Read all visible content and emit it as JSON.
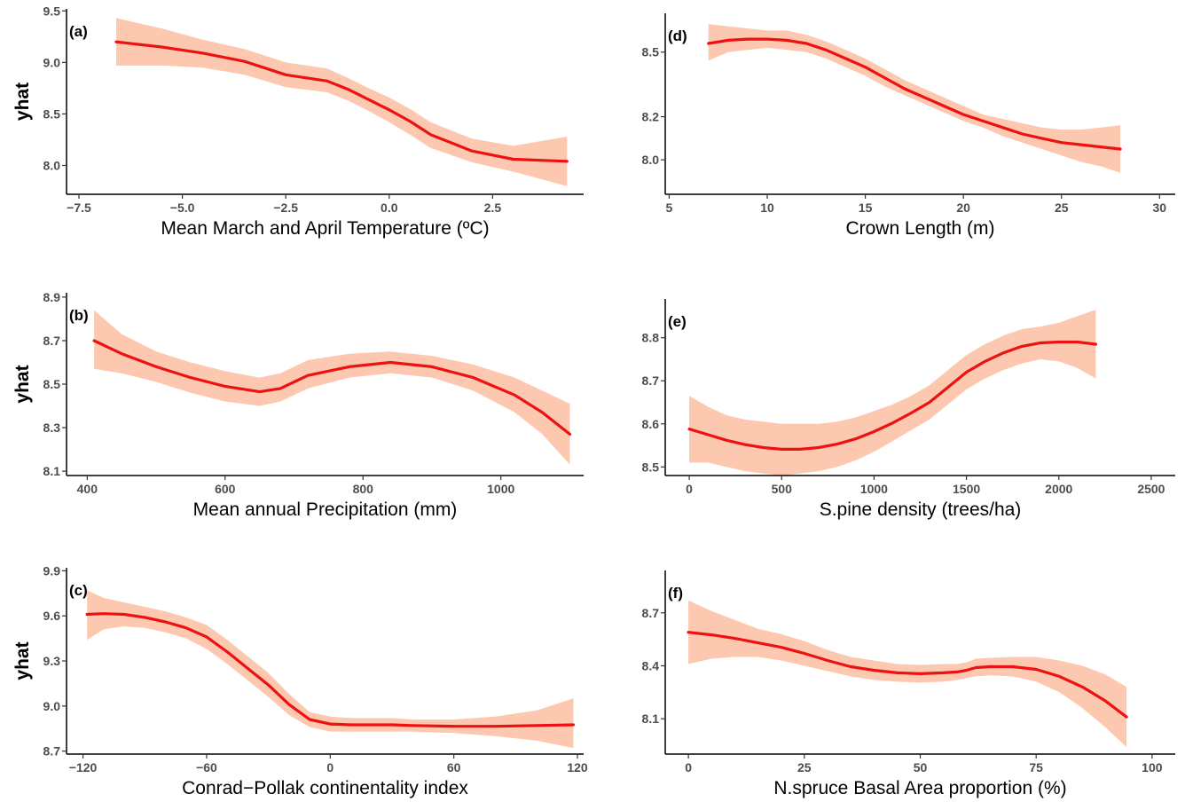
{
  "chart_data": [
    {
      "type": "line",
      "panel_label": "(a)",
      "xlabel": "Mean March and April Temperature (ºC)",
      "ylabel": "yhat",
      "xlim": [
        -7.8,
        4.7
      ],
      "ylim": [
        7.72,
        9.52
      ],
      "xticks": [
        -7.5,
        -5.0,
        -2.5,
        0.0,
        2.5
      ],
      "xtick_labels": [
        "−7.5",
        "−5.0",
        "−2.5",
        "0.0",
        "2.5"
      ],
      "yticks": [
        8.0,
        8.5,
        9.0,
        9.5
      ],
      "ytick_labels": [
        "8.0",
        "8.5",
        "9.0",
        "9.5"
      ],
      "x": [
        -6.6,
        -5.5,
        -4.5,
        -3.5,
        -2.5,
        -1.5,
        -1.0,
        -0.5,
        0.0,
        0.5,
        1.0,
        2.0,
        3.0,
        4.3
      ],
      "y": [
        9.2,
        9.15,
        9.09,
        9.01,
        8.88,
        8.82,
        8.74,
        8.64,
        8.54,
        8.43,
        8.3,
        8.14,
        8.06,
        8.04
      ],
      "lower": [
        8.97,
        8.97,
        8.95,
        8.88,
        8.76,
        8.71,
        8.63,
        8.53,
        8.42,
        8.3,
        8.17,
        8.03,
        7.94,
        7.8
      ],
      "upper": [
        9.43,
        9.33,
        9.22,
        9.13,
        9.0,
        8.94,
        8.85,
        8.75,
        8.66,
        8.55,
        8.42,
        8.26,
        8.19,
        8.28
      ]
    },
    {
      "type": "line",
      "panel_label": "(b)",
      "xlabel": "Mean annual Precipitation (mm)",
      "ylabel": "yhat",
      "xlim": [
        370,
        1120
      ],
      "ylim": [
        8.08,
        8.92
      ],
      "xticks": [
        400,
        600,
        800,
        1000
      ],
      "xtick_labels": [
        "400",
        "600",
        "800",
        "1000"
      ],
      "yticks": [
        8.1,
        8.3,
        8.5,
        8.7,
        8.9
      ],
      "ytick_labels": [
        "8.1",
        "8.3",
        "8.5",
        "8.7",
        "8.9"
      ],
      "x": [
        410,
        450,
        500,
        550,
        600,
        650,
        680,
        720,
        780,
        840,
        900,
        960,
        1020,
        1060,
        1100
      ],
      "y": [
        8.7,
        8.64,
        8.58,
        8.53,
        8.49,
        8.465,
        8.48,
        8.54,
        8.58,
        8.6,
        8.58,
        8.53,
        8.45,
        8.37,
        8.27
      ],
      "lower": [
        8.57,
        8.55,
        8.51,
        8.46,
        8.42,
        8.4,
        8.42,
        8.48,
        8.53,
        8.55,
        8.53,
        8.47,
        8.37,
        8.27,
        8.13
      ],
      "upper": [
        8.84,
        8.73,
        8.65,
        8.6,
        8.56,
        8.53,
        8.55,
        8.61,
        8.64,
        8.65,
        8.63,
        8.59,
        8.53,
        8.47,
        8.41
      ]
    },
    {
      "type": "line",
      "panel_label": "(c)",
      "xlabel": "Conrad−Pollak continentality index",
      "ylabel": "yhat",
      "xlim": [
        -128,
        123
      ],
      "ylim": [
        8.68,
        9.92
      ],
      "xticks": [
        -120,
        -60,
        0,
        60,
        120
      ],
      "xtick_labels": [
        "−120",
        "−60",
        "0",
        "60",
        "120"
      ],
      "yticks": [
        8.7,
        9.0,
        9.3,
        9.6,
        9.9
      ],
      "ytick_labels": [
        "8.7",
        "9.0",
        "9.3",
        "9.6",
        "9.9"
      ],
      "x": [
        -118,
        -110,
        -100,
        -90,
        -80,
        -70,
        -60,
        -50,
        -40,
        -30,
        -20,
        -10,
        0,
        10,
        20,
        30,
        40,
        60,
        80,
        100,
        118
      ],
      "y": [
        9.61,
        9.615,
        9.61,
        9.59,
        9.56,
        9.52,
        9.46,
        9.36,
        9.25,
        9.14,
        9.01,
        8.91,
        8.88,
        8.875,
        8.875,
        8.875,
        8.87,
        8.865,
        8.865,
        8.87,
        8.875
      ],
      "lower": [
        9.44,
        9.51,
        9.53,
        9.52,
        9.49,
        9.45,
        9.38,
        9.28,
        9.17,
        9.06,
        8.94,
        8.86,
        8.83,
        8.83,
        8.83,
        8.83,
        8.83,
        8.82,
        8.8,
        8.77,
        8.72
      ],
      "upper": [
        9.77,
        9.72,
        9.69,
        9.66,
        9.63,
        9.59,
        9.54,
        9.44,
        9.33,
        9.22,
        9.08,
        8.96,
        8.93,
        8.92,
        8.92,
        8.92,
        8.91,
        8.91,
        8.93,
        8.97,
        9.05
      ]
    },
    {
      "type": "line",
      "panel_label": "(d)",
      "xlabel": "Crown Length (m)",
      "ylabel": "",
      "xlim": [
        4.8,
        30.8
      ],
      "ylim": [
        7.84,
        8.68
      ],
      "xticks": [
        5,
        10,
        15,
        20,
        25,
        30
      ],
      "xtick_labels": [
        "5",
        "10",
        "15",
        "20",
        "25",
        "30"
      ],
      "yticks": [
        8.0,
        8.2,
        8.5
      ],
      "ytick_labels": [
        "8.0",
        "8.2",
        "8.5"
      ],
      "x": [
        7,
        8,
        9,
        10,
        11,
        12,
        13,
        14,
        15,
        16,
        17,
        18,
        19,
        20,
        21,
        22,
        23,
        24,
        25,
        26,
        27,
        28
      ],
      "y": [
        8.54,
        8.555,
        8.56,
        8.56,
        8.555,
        8.54,
        8.51,
        8.47,
        8.43,
        8.38,
        8.33,
        8.29,
        8.25,
        8.21,
        8.18,
        8.15,
        8.12,
        8.1,
        8.08,
        8.07,
        8.06,
        8.05
      ],
      "lower": [
        8.46,
        8.5,
        8.51,
        8.52,
        8.51,
        8.5,
        8.47,
        8.43,
        8.39,
        8.34,
        8.3,
        8.26,
        8.22,
        8.18,
        8.15,
        8.11,
        8.08,
        8.05,
        8.02,
        7.99,
        7.97,
        7.94
      ],
      "upper": [
        8.63,
        8.62,
        8.61,
        8.6,
        8.6,
        8.58,
        8.55,
        8.51,
        8.47,
        8.42,
        8.37,
        8.33,
        8.29,
        8.25,
        8.21,
        8.19,
        8.17,
        8.15,
        8.14,
        8.14,
        8.15,
        8.16
      ]
    },
    {
      "type": "line",
      "panel_label": "(e)",
      "xlabel": "S.pine density (trees/ha)",
      "ylabel": "",
      "xlim": [
        -130,
        2630
      ],
      "ylim": [
        8.48,
        8.89
      ],
      "xticks": [
        0,
        500,
        1000,
        1500,
        2000,
        2500
      ],
      "xtick_labels": [
        "0",
        "500",
        "1000",
        "1500",
        "2000",
        "2500"
      ],
      "yticks": [
        8.5,
        8.6,
        8.7,
        8.8
      ],
      "ytick_labels": [
        "8.5",
        "8.6",
        "8.7",
        "8.8"
      ],
      "x": [
        0,
        100,
        200,
        300,
        400,
        500,
        600,
        700,
        800,
        900,
        1000,
        1100,
        1200,
        1300,
        1400,
        1500,
        1600,
        1700,
        1800,
        1900,
        2000,
        2100,
        2200
      ],
      "y": [
        8.588,
        8.575,
        8.562,
        8.552,
        8.545,
        8.541,
        8.541,
        8.545,
        8.553,
        8.565,
        8.582,
        8.602,
        8.625,
        8.65,
        8.685,
        8.72,
        8.745,
        8.765,
        8.78,
        8.788,
        8.79,
        8.79,
        8.785
      ],
      "lower": [
        8.51,
        8.51,
        8.5,
        8.49,
        8.485,
        8.48,
        8.485,
        8.49,
        8.5,
        8.515,
        8.535,
        8.56,
        8.585,
        8.61,
        8.645,
        8.68,
        8.705,
        8.725,
        8.74,
        8.75,
        8.745,
        8.73,
        8.705
      ],
      "upper": [
        8.665,
        8.64,
        8.62,
        8.61,
        8.605,
        8.6,
        8.6,
        8.6,
        8.605,
        8.615,
        8.63,
        8.645,
        8.665,
        8.69,
        8.725,
        8.76,
        8.785,
        8.805,
        8.82,
        8.826,
        8.835,
        8.85,
        8.865
      ]
    },
    {
      "type": "line",
      "panel_label": "(f)",
      "xlabel": "N.spruce Basal Area proportion (%)",
      "ylabel": "",
      "xlim": [
        -5,
        105
      ],
      "ylim": [
        7.9,
        8.94
      ],
      "xticks": [
        0,
        25,
        50,
        75,
        100
      ],
      "xtick_labels": [
        "0",
        "25",
        "50",
        "75",
        "100"
      ],
      "yticks": [
        8.1,
        8.4,
        8.7
      ],
      "ytick_labels": [
        "8.1",
        "8.4",
        "8.7"
      ],
      "x": [
        0,
        5,
        10,
        15,
        20,
        25,
        30,
        35,
        40,
        45,
        50,
        55,
        58,
        60,
        62,
        65,
        70,
        75,
        80,
        85,
        90,
        94.5
      ],
      "y": [
        8.59,
        8.575,
        8.555,
        8.53,
        8.505,
        8.47,
        8.43,
        8.395,
        8.375,
        8.36,
        8.355,
        8.36,
        8.365,
        8.375,
        8.39,
        8.395,
        8.395,
        8.38,
        8.34,
        8.28,
        8.2,
        8.11
      ],
      "lower": [
        8.41,
        8.44,
        8.45,
        8.45,
        8.43,
        8.4,
        8.37,
        8.34,
        8.32,
        8.31,
        8.305,
        8.31,
        8.32,
        8.33,
        8.34,
        8.345,
        8.34,
        8.31,
        8.25,
        8.16,
        8.05,
        7.94
      ],
      "upper": [
        8.77,
        8.71,
        8.66,
        8.61,
        8.58,
        8.54,
        8.49,
        8.45,
        8.43,
        8.41,
        8.405,
        8.41,
        8.41,
        8.42,
        8.44,
        8.445,
        8.45,
        8.45,
        8.43,
        8.4,
        8.35,
        8.28
      ]
    }
  ],
  "colors": {
    "line": "#ee1111",
    "band": "#fdc8b0",
    "axis": "#000000",
    "tick_text": "#4d4d4d"
  }
}
